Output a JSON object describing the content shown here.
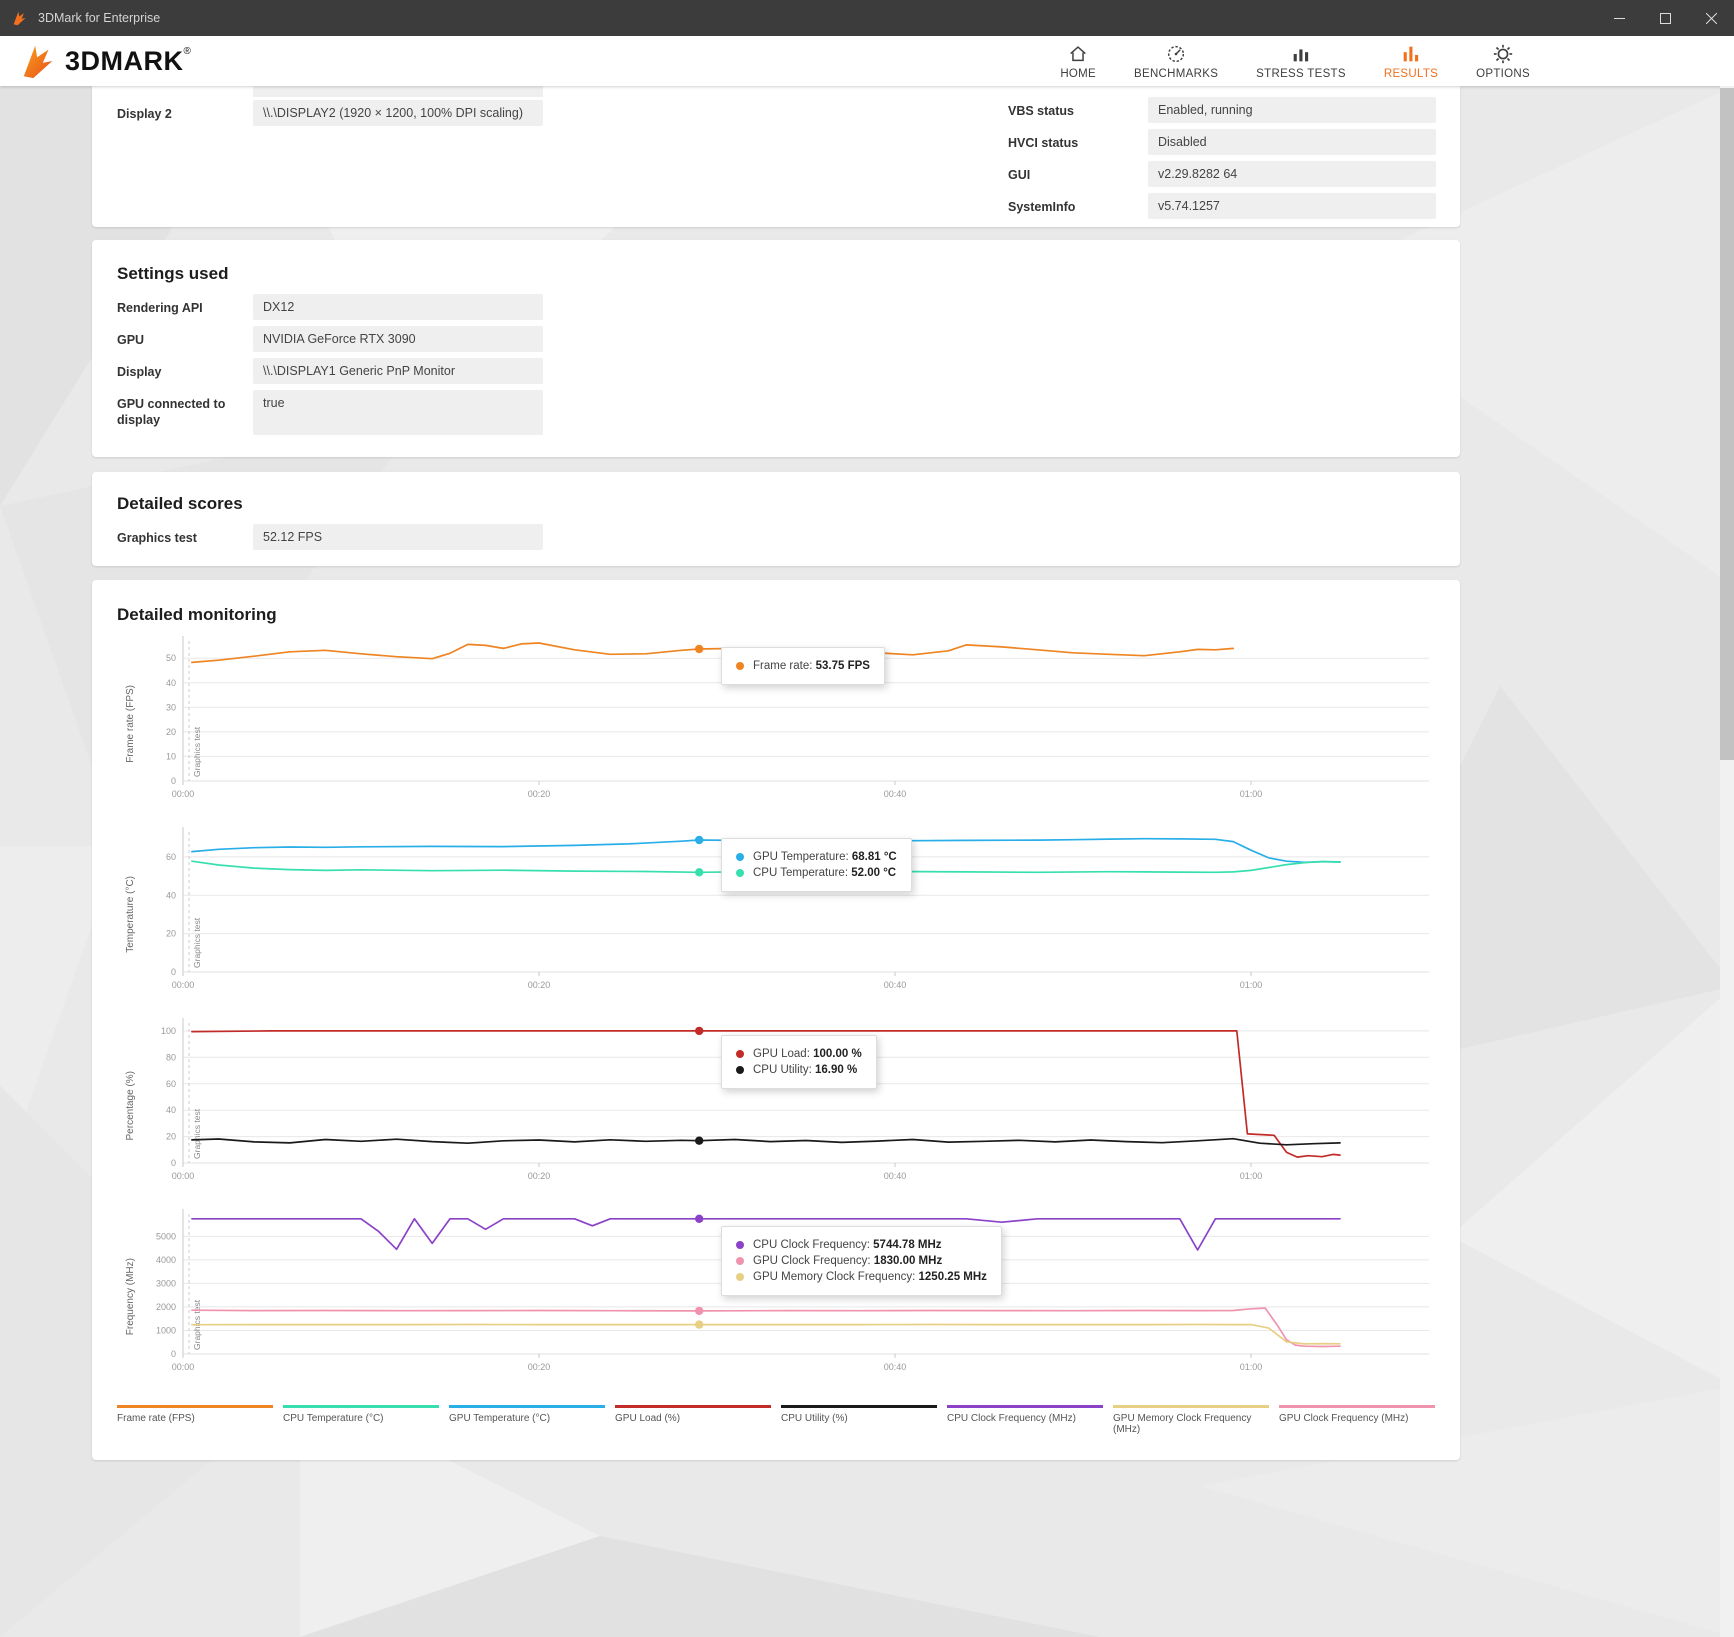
{
  "window": {
    "title": "3DMark for Enterprise"
  },
  "header": {
    "logo_text": "3DMARK",
    "logo_reg": "®",
    "active_color": "#f0701f",
    "nav": [
      {
        "label": "HOME"
      },
      {
        "label": "BENCHMARKS"
      },
      {
        "label": "STRESS TESTS"
      },
      {
        "label": "RESULTS"
      },
      {
        "label": "OPTIONS"
      }
    ]
  },
  "system_card": {
    "fields_left": [
      {
        "label": "Display 2",
        "value": "\\\\.\\DISPLAY2 (1920 × 1200, 100% DPI scaling)"
      }
    ],
    "fields_right": [
      {
        "label": "VBS status",
        "value": "Enabled, running"
      },
      {
        "label": "HVCI status",
        "value": "Disabled"
      },
      {
        "label": "GUI",
        "value": "v2.29.8282 64"
      },
      {
        "label": "SystemInfo",
        "value": "v5.74.1257"
      }
    ]
  },
  "settings_card": {
    "title": "Settings used",
    "fields": [
      {
        "label": "Rendering API",
        "value": "DX12"
      },
      {
        "label": "GPU",
        "value": "NVIDIA GeForce RTX 3090"
      },
      {
        "label": "Display",
        "value": "\\\\.\\DISPLAY1 Generic PnP Monitor"
      },
      {
        "label": "GPU connected to display",
        "value": "true"
      }
    ]
  },
  "scores_card": {
    "title": "Detailed scores",
    "fields": [
      {
        "label": "Graphics test",
        "value": "52.12 FPS"
      }
    ]
  },
  "monitoring": {
    "title": "Detailed monitoring",
    "legend": [
      {
        "label": "Frame rate (FPS)",
        "color": "#ee8422"
      },
      {
        "label": "CPU Temperature (°C)",
        "color": "#38dfae"
      },
      {
        "label": "GPU Temperature (°C)",
        "color": "#2aaee8"
      },
      {
        "label": "GPU Load (%)",
        "color": "#c22b28"
      },
      {
        "label": "CPU Utility (%)",
        "color": "#1a1a1a"
      },
      {
        "label": "CPU Clock Frequency (MHz)",
        "color": "#8a42c8"
      },
      {
        "label": "GPU Memory Clock Frequency (MHz)",
        "color": "#e7cf84"
      },
      {
        "label": "GPU Clock Frequency (MHz)",
        "color": "#f093ae"
      }
    ]
  },
  "chart_data": [
    {
      "type": "line",
      "ylabel": "Frame rate (FPS)",
      "region_label": "Graphics test",
      "xlim": [
        0,
        70
      ],
      "ylim": [
        0,
        57
      ],
      "yticks": [
        0,
        10,
        20,
        30,
        40,
        50
      ],
      "xticks": [
        {
          "s": 0,
          "label": "00:00"
        },
        {
          "s": 20,
          "label": "00:20"
        },
        {
          "s": 40,
          "label": "00:40"
        },
        {
          "s": 60,
          "label": "01:00"
        }
      ],
      "series": [
        {
          "name": "Frame rate (FPS)",
          "color": "#ee8422",
          "x": [
            0.5,
            2,
            4,
            6,
            8,
            10,
            12,
            13,
            14,
            15,
            16,
            17,
            18,
            19,
            20,
            22,
            24,
            26,
            28,
            29,
            31,
            33,
            35,
            37,
            39,
            41,
            43,
            44,
            46,
            48,
            50,
            52,
            54,
            56,
            57,
            58,
            59
          ],
          "y": [
            48.3,
            49.2,
            50.8,
            52.6,
            53.2,
            51.8,
            50.6,
            50.2,
            49.8,
            52.0,
            55.6,
            55.2,
            54.0,
            55.8,
            56.2,
            53.4,
            51.6,
            51.8,
            53.2,
            53.75,
            54.0,
            53.2,
            52.2,
            50.8,
            52.2,
            51.4,
            53.0,
            55.4,
            54.6,
            53.4,
            52.2,
            51.6,
            51.0,
            52.6,
            53.6,
            53.4,
            54.0
          ]
        }
      ],
      "hover": {
        "x_seconds": 29,
        "tooltip": [
          {
            "color": "#ee8422",
            "label": "Frame rate:",
            "value": "53.75 FPS"
          }
        ]
      }
    },
    {
      "type": "line",
      "ylabel": "Temperature (°C)",
      "region_label": "Graphics test",
      "xlim": [
        0,
        70
      ],
      "ylim": [
        0,
        73
      ],
      "yticks": [
        0,
        20,
        40,
        60
      ],
      "xticks": [
        {
          "s": 0,
          "label": "00:00"
        },
        {
          "s": 20,
          "label": "00:20"
        },
        {
          "s": 40,
          "label": "00:40"
        },
        {
          "s": 60,
          "label": "01:00"
        }
      ],
      "series": [
        {
          "name": "GPU Temperature (°C)",
          "color": "#2aaee8",
          "x": [
            0.5,
            2,
            4,
            6,
            8,
            10,
            14,
            18,
            22,
            25,
            28,
            29,
            32,
            36,
            40,
            44,
            48,
            50,
            52,
            54,
            56,
            58,
            59,
            60,
            61,
            62,
            63,
            64,
            65
          ],
          "y": [
            62.8,
            64.0,
            64.8,
            65.2,
            65.0,
            65.3,
            65.5,
            65.4,
            66.0,
            66.8,
            68.2,
            68.81,
            68.5,
            68.6,
            68.4,
            68.6,
            68.8,
            69.0,
            69.3,
            69.5,
            69.4,
            69.2,
            68.0,
            63.5,
            59.5,
            57.8,
            57.2,
            57.5,
            57.4
          ]
        },
        {
          "name": "CPU Temperature (°C)",
          "color": "#38dfae",
          "x": [
            0.5,
            2,
            4,
            6,
            8,
            10,
            14,
            18,
            22,
            26,
            29,
            32,
            36,
            40,
            44,
            48,
            52,
            56,
            58,
            59,
            60,
            61,
            62,
            63,
            64,
            65
          ],
          "y": [
            57.8,
            55.8,
            54.2,
            53.4,
            53.0,
            53.3,
            52.8,
            53.1,
            52.6,
            52.4,
            52.0,
            52.3,
            52.1,
            52.4,
            52.2,
            52.0,
            52.3,
            52.1,
            52.0,
            52.2,
            53.0,
            54.5,
            56.0,
            57.0,
            57.6,
            57.3
          ]
        }
      ],
      "hover": {
        "x_seconds": 29,
        "tooltip": [
          {
            "color": "#2aaee8",
            "label": "GPU Temperature:",
            "value": "68.81 °C"
          },
          {
            "color": "#38dfae",
            "label": "CPU Temperature:",
            "value": "52.00 °C"
          }
        ]
      }
    },
    {
      "type": "line",
      "ylabel": "Percentage (%)",
      "region_label": "Graphics test",
      "xlim": [
        0,
        70
      ],
      "ylim": [
        0,
        106
      ],
      "yticks": [
        0,
        20,
        40,
        60,
        80,
        100
      ],
      "xticks": [
        {
          "s": 0,
          "label": "00:00"
        },
        {
          "s": 20,
          "label": "00:20"
        },
        {
          "s": 40,
          "label": "00:40"
        },
        {
          "s": 60,
          "label": "01:00"
        }
      ],
      "series": [
        {
          "name": "GPU Load (%)",
          "color": "#c22b28",
          "x": [
            0.5,
            5,
            10,
            15,
            20,
            25,
            29,
            35,
            40,
            45,
            50,
            55,
            58,
            59.2,
            59.8,
            61.3,
            62,
            62.6,
            63.2,
            64,
            64.6,
            65
          ],
          "y": [
            99.5,
            100,
            100,
            100,
            100,
            100,
            100,
            100,
            100,
            100,
            100,
            100,
            100,
            100,
            22,
            21,
            8,
            4.5,
            5.5,
            4.8,
            6.5,
            6
          ]
        },
        {
          "name": "CPU Utility (%)",
          "color": "#1a1a1a",
          "x": [
            0.5,
            2,
            4,
            6,
            8,
            10,
            12,
            14,
            16,
            18,
            20,
            22,
            24,
            26,
            28,
            29,
            31,
            33,
            35,
            37,
            39,
            41,
            43,
            45,
            47,
            49,
            51,
            53,
            55,
            57,
            59,
            60.5,
            62,
            63.5,
            65
          ],
          "y": [
            17.5,
            18.2,
            16.0,
            15.2,
            17.8,
            16.4,
            18.0,
            16.2,
            15.0,
            16.8,
            17.4,
            16.0,
            17.6,
            16.4,
            17.2,
            16.9,
            17.8,
            16.2,
            17.0,
            15.6,
            16.6,
            17.8,
            15.8,
            16.4,
            17.2,
            16.0,
            17.4,
            16.2,
            15.4,
            16.8,
            18.4,
            15.0,
            13.8,
            14.6,
            15.2
          ]
        }
      ],
      "hover": {
        "x_seconds": 29,
        "tooltip": [
          {
            "color": "#c22b28",
            "label": "GPU Load:",
            "value": "100.00 %"
          },
          {
            "color": "#1a1a1a",
            "label": "CPU Utility:",
            "value": "16.90 %"
          }
        ]
      }
    },
    {
      "type": "line",
      "ylabel": "Frequency (MHz)",
      "region_label": "Graphics test",
      "xlim": [
        0,
        70
      ],
      "ylim": [
        0,
        5950
      ],
      "yticks": [
        0,
        1000,
        2000,
        3000,
        4000,
        5000
      ],
      "xticks": [
        {
          "s": 0,
          "label": "00:00"
        },
        {
          "s": 20,
          "label": "00:20"
        },
        {
          "s": 40,
          "label": "00:40"
        },
        {
          "s": 60,
          "label": "01:00"
        }
      ],
      "series": [
        {
          "name": "CPU Clock Frequency (MHz)",
          "color": "#8a42c8",
          "x": [
            0.5,
            2,
            4,
            6,
            8,
            10,
            11,
            12,
            13,
            14,
            15,
            16,
            17,
            18,
            20,
            22,
            23,
            24,
            26,
            28,
            29,
            32,
            36,
            40,
            44,
            46,
            48,
            50,
            52,
            54,
            56,
            57,
            58,
            59,
            60,
            62,
            64,
            65
          ],
          "y": [
            5744,
            5744,
            5744,
            5744,
            5744,
            5744,
            5200,
            4450,
            5744,
            4700,
            5744,
            5744,
            5300,
            5744,
            5744,
            5744,
            5450,
            5744,
            5744,
            5744,
            5744.78,
            5744,
            5744,
            5744,
            5744,
            5600,
            5744,
            5744,
            5744,
            5744,
            5744,
            4420,
            5744,
            5744,
            5744,
            5744,
            5744,
            5744
          ]
        },
        {
          "name": "GPU Clock Frequency (MHz)",
          "color": "#f093ae",
          "x": [
            0.5,
            4,
            8,
            12,
            16,
            20,
            24,
            29,
            34,
            38,
            42,
            46,
            50,
            54,
            57,
            59,
            60,
            60.8,
            61.5,
            62,
            62.5,
            63,
            64,
            65
          ],
          "y": [
            1860,
            1845,
            1850,
            1840,
            1845,
            1850,
            1840,
            1830,
            1845,
            1840,
            1850,
            1845,
            1840,
            1850,
            1845,
            1850,
            1920,
            1950,
            1200,
            600,
            380,
            330,
            320,
            330
          ]
        },
        {
          "name": "GPU Memory Clock Frequency (MHz)",
          "color": "#e7cf84",
          "x": [
            0.5,
            4,
            8,
            12,
            16,
            20,
            24,
            29,
            34,
            38,
            42,
            46,
            50,
            54,
            57,
            59,
            60,
            61,
            62,
            63,
            64,
            65
          ],
          "y": [
            1245,
            1250,
            1248,
            1250,
            1252,
            1248,
            1250,
            1250.25,
            1250,
            1248,
            1252,
            1250,
            1248,
            1250,
            1252,
            1250,
            1250,
            1100,
            520,
            430,
            440,
            435
          ]
        }
      ],
      "hover": {
        "x_seconds": 29,
        "tooltip": [
          {
            "color": "#8a42c8",
            "label": "CPU Clock Frequency:",
            "value": "5744.78 MHz"
          },
          {
            "color": "#f093ae",
            "label": "GPU Clock Frequency:",
            "value": "1830.00 MHz"
          },
          {
            "color": "#e7cf84",
            "label": "GPU Memory Clock Frequency:",
            "value": "1250.25 MHz"
          }
        ]
      }
    }
  ]
}
